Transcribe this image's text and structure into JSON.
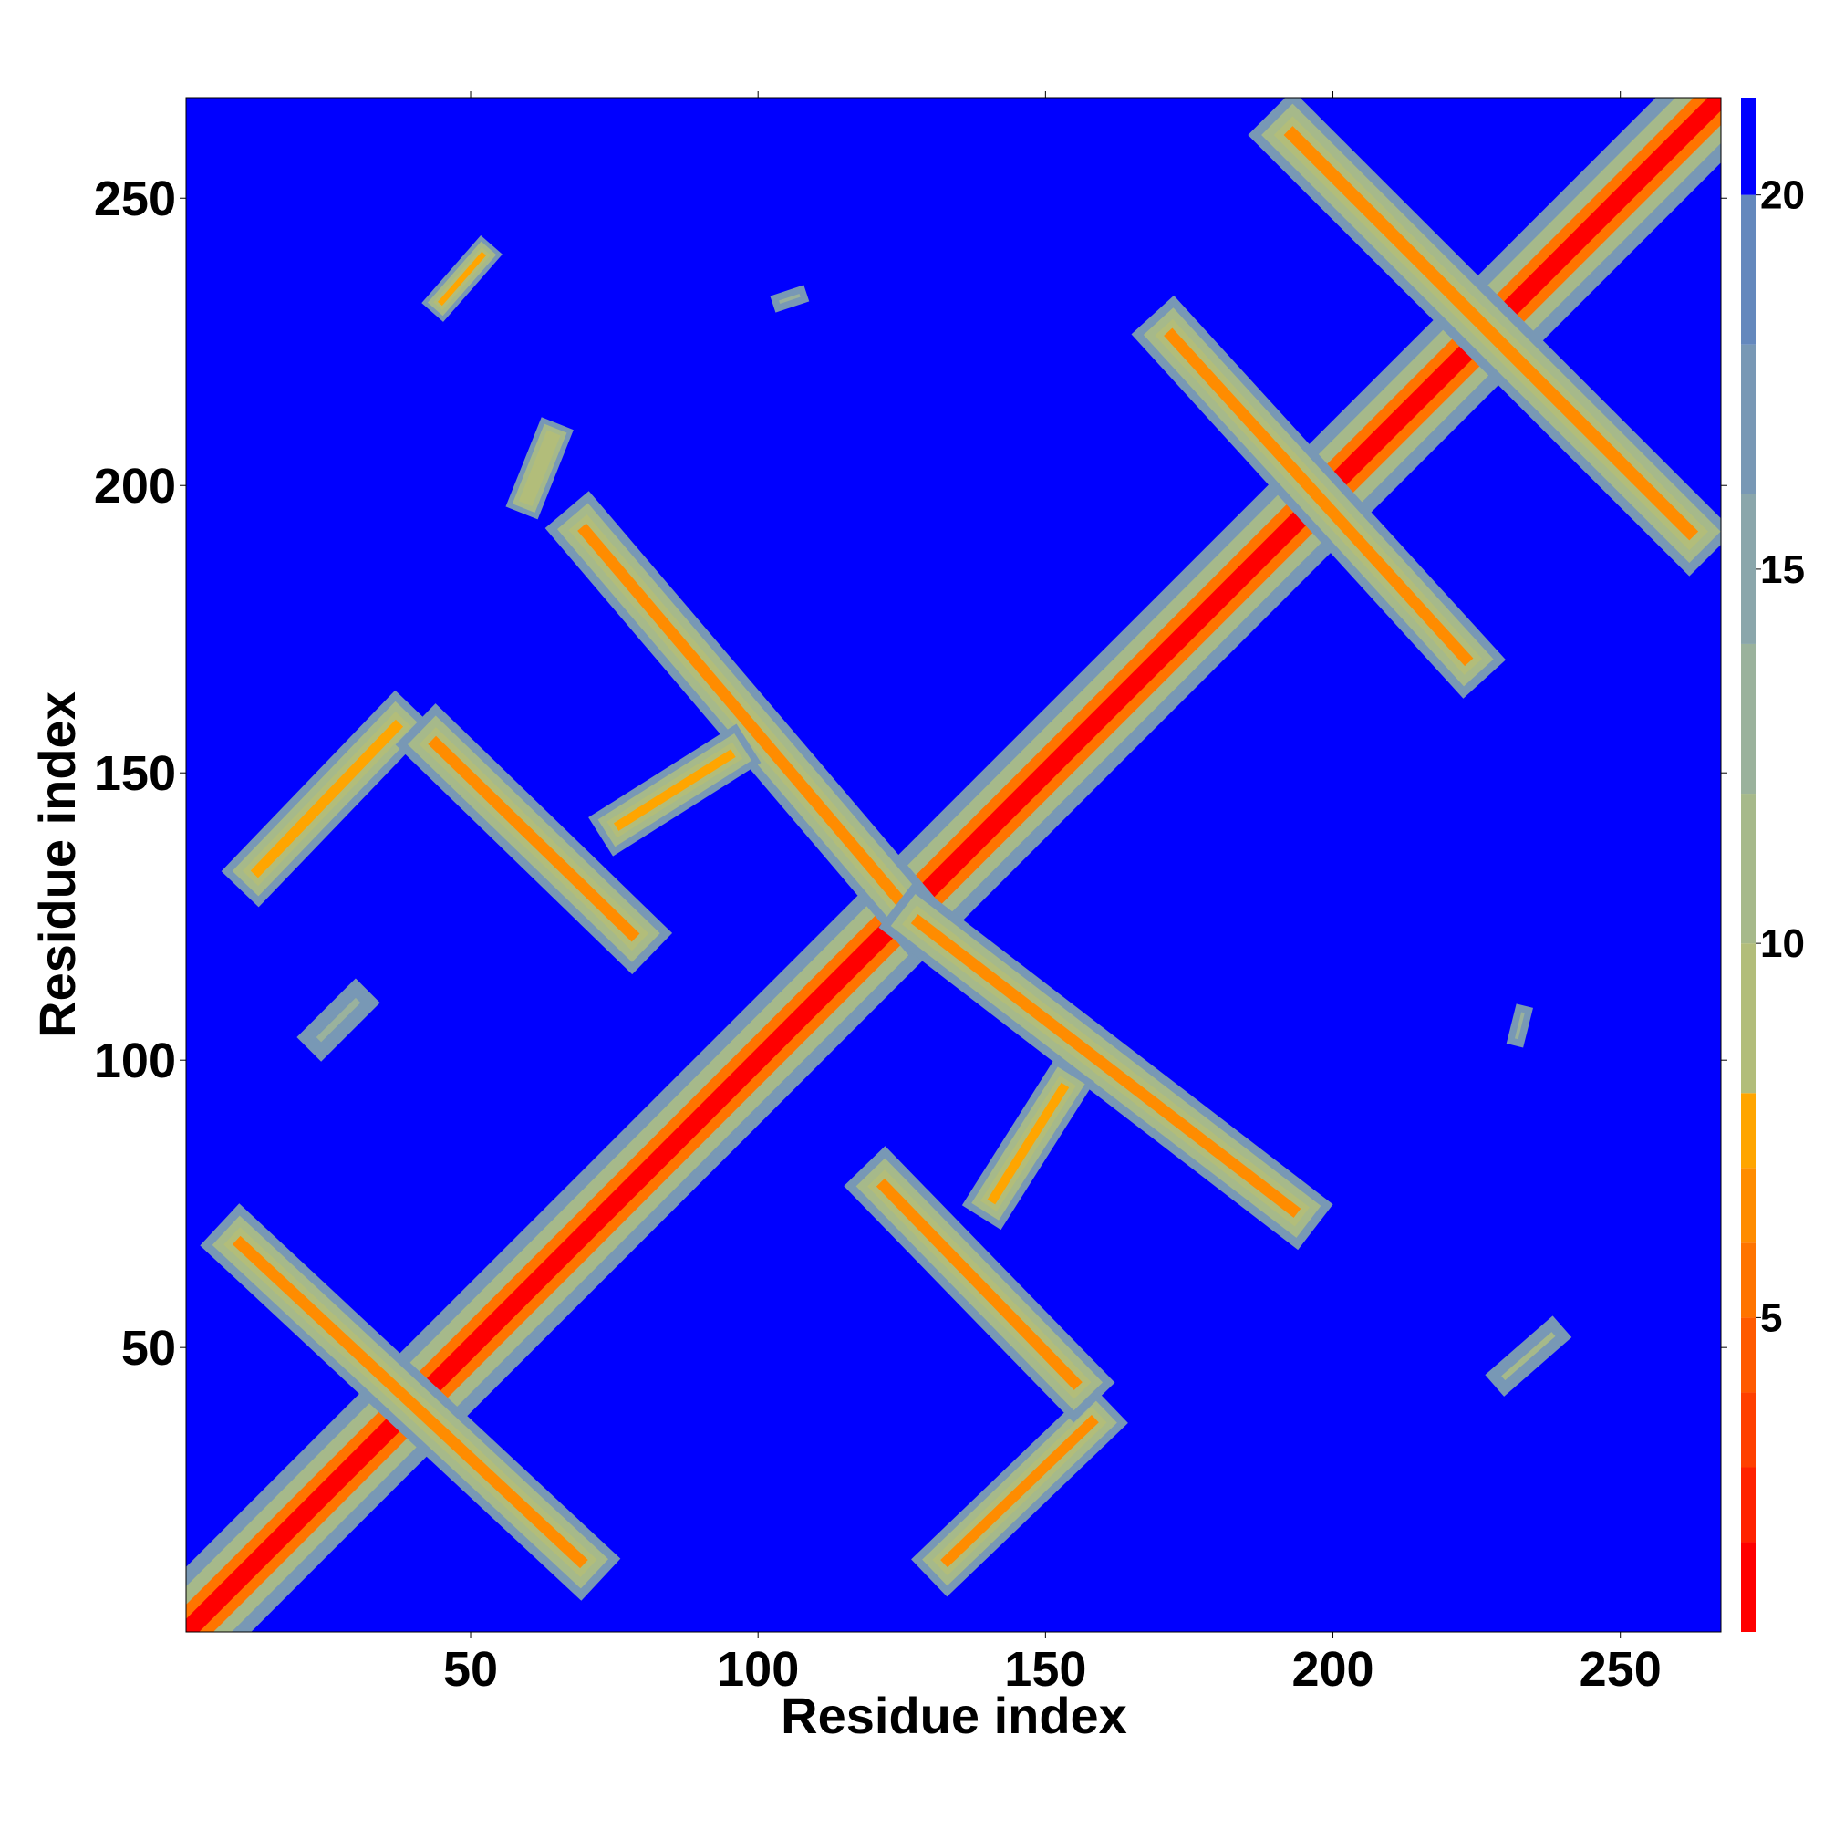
{
  "chart_data": {
    "type": "heatmap",
    "xlabel": "Residue index",
    "ylabel": "Residue index",
    "xlim": [
      0.5,
      267.5
    ],
    "ylim": [
      0.5,
      267.5
    ],
    "xticks": [
      50,
      100,
      150,
      200,
      250
    ],
    "yticks": [
      50,
      100,
      150,
      200,
      250
    ],
    "colorbar": {
      "clim": [
        0.8,
        21.3
      ],
      "ticks": [
        5,
        10,
        15,
        20
      ],
      "levels": [
        0.8,
        2,
        3,
        4,
        5,
        6,
        7,
        8,
        10,
        12,
        14,
        16,
        18,
        20,
        21.3
      ],
      "colors": [
        "#ff0000",
        "#ff2200",
        "#ff4000",
        "#ff5a00",
        "#ff7400",
        "#ff8c00",
        "#ffa500",
        "#b2bd7a",
        "#a6b98a",
        "#9ab29c",
        "#8aa6ab",
        "#7898b5",
        "#6488bd",
        "#0000ff"
      ]
    },
    "features": [
      {
        "x": [
          1,
          267
        ],
        "y": [
          1,
          267
        ],
        "width": 16,
        "value": 1
      },
      {
        "x": [
          10,
          69
        ],
        "y": [
          68,
          13
        ],
        "width": 10,
        "value": 6
      },
      {
        "x": [
          13,
          37
        ],
        "y": [
          133,
          158
        ],
        "width": 9,
        "value": 7
      },
      {
        "x": [
          44,
          78
        ],
        "y": [
          155,
          122
        ],
        "width": 10,
        "value": 6
      },
      {
        "x": [
          70,
          127
        ],
        "y": [
          192,
          125
        ],
        "width": 10,
        "value": 6
      },
      {
        "x": [
          76,
          95
        ],
        "y": [
          141,
          153
        ],
        "width": 8,
        "value": 7
      },
      {
        "x": [
          193,
          262
        ],
        "y": [
          261,
          192
        ],
        "width": 11,
        "value": 6
      },
      {
        "x": [
          172,
          223
        ],
        "y": [
          226,
          170
        ],
        "width": 10,
        "value": 6
      },
      {
        "x": [
          128,
          193
        ],
        "y": [
          124,
          74
        ],
        "width": 10,
        "value": 6
      },
      {
        "x": [
          133,
          158
        ],
        "y": [
          13,
          37
        ],
        "width": 9,
        "value": 6
      },
      {
        "x": [
          122,
          155
        ],
        "y": [
          78,
          44
        ],
        "width": 10,
        "value": 6
      },
      {
        "x": [
          141,
          153
        ],
        "y": [
          76,
          95
        ],
        "width": 8,
        "value": 7
      },
      {
        "x": [
          45,
          52
        ],
        "y": [
          232,
          240
        ],
        "width": 5,
        "value": 7
      },
      {
        "x": [
          104,
          107
        ],
        "y": [
          232,
          233
        ],
        "width": 3,
        "value": 12
      },
      {
        "x": [
          230,
          238
        ],
        "y": [
          45,
          52
        ],
        "width": 5,
        "value": 10
      },
      {
        "x": [
          60,
          64
        ],
        "y": [
          198,
          208
        ],
        "width": 6,
        "value": 8
      },
      {
        "x": [
          24,
          30
        ],
        "y": [
          104,
          110
        ],
        "width": 6,
        "value": 12
      },
      {
        "x": [
          232,
          233
        ],
        "y": [
          104,
          108
        ],
        "width": 3,
        "value": 12
      }
    ]
  }
}
